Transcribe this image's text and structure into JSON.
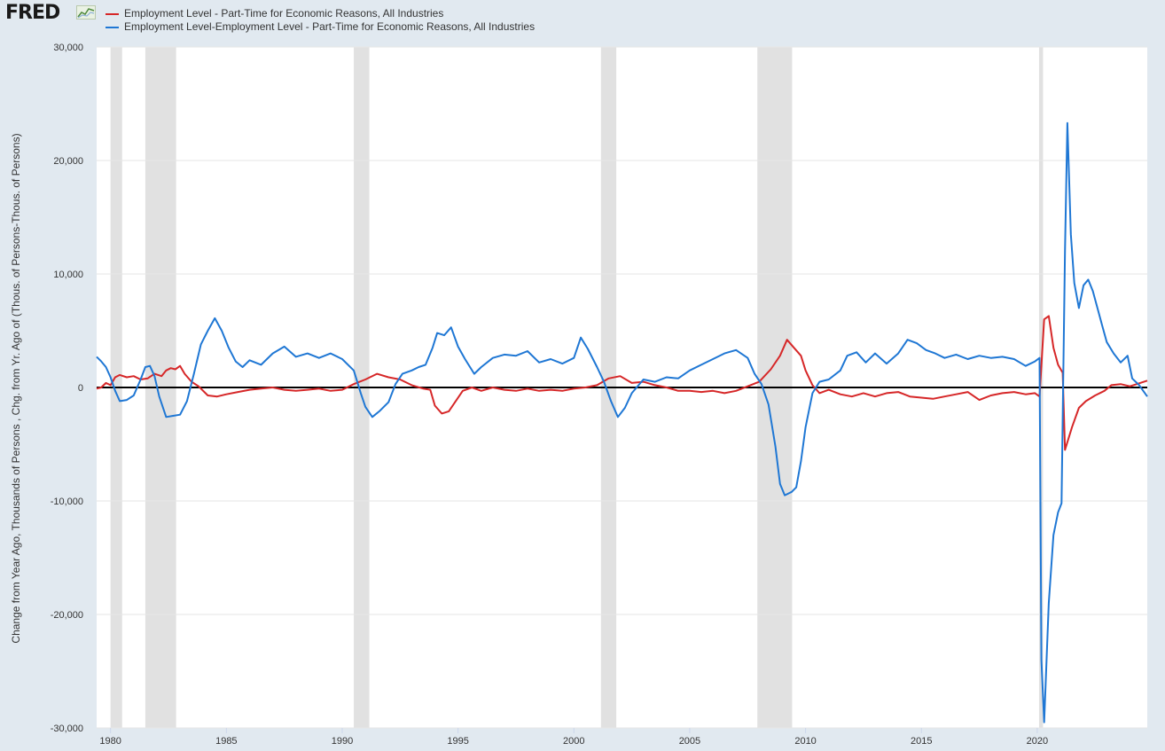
{
  "brand": {
    "name": "FRED"
  },
  "chart_data": {
    "type": "line",
    "title": "",
    "xlabel": "",
    "ylabel": "Change from Year Ago, Thousands of Persons , Chg. from Yr. Ago of (Thous. of Persons-Thous. of Persons)",
    "xlim": [
      1979.4,
      2024.75
    ],
    "ylim": [
      -30000,
      30000
    ],
    "yticks": [
      30000,
      20000,
      10000,
      0,
      -10000,
      -20000,
      -30000
    ],
    "ytick_labels": [
      "30,000",
      "20,000",
      "10,000",
      "0",
      "-10,000",
      "-20,000",
      "-30,000"
    ],
    "xticks": [
      1980,
      1985,
      1990,
      1995,
      2000,
      2005,
      2010,
      2015,
      2020
    ],
    "xtick_labels": [
      "1980",
      "1985",
      "1990",
      "1995",
      "2000",
      "2005",
      "2010",
      "2015",
      "2020"
    ],
    "grid": "horizontal",
    "zero_line": true,
    "recessions": [
      [
        1980.0,
        1980.5
      ],
      [
        1981.5,
        1982.83
      ],
      [
        1990.5,
        1991.17
      ],
      [
        2001.17,
        2001.83
      ],
      [
        2007.92,
        2009.42
      ],
      [
        2020.08,
        2020.25
      ]
    ],
    "series": [
      {
        "name": "Employment Level - Part-Time for Economic Reasons, All Industries",
        "color": "#d62728",
        "points": [
          [
            1979.4,
            -100
          ],
          [
            1979.6,
            0
          ],
          [
            1979.8,
            400
          ],
          [
            1980.0,
            200
          ],
          [
            1980.2,
            900
          ],
          [
            1980.4,
            1100
          ],
          [
            1980.7,
            900
          ],
          [
            1981.0,
            1000
          ],
          [
            1981.3,
            700
          ],
          [
            1981.6,
            800
          ],
          [
            1981.9,
            1200
          ],
          [
            1982.2,
            1000
          ],
          [
            1982.4,
            1500
          ],
          [
            1982.6,
            1700
          ],
          [
            1982.8,
            1600
          ],
          [
            1983.0,
            1900
          ],
          [
            1983.2,
            1200
          ],
          [
            1983.5,
            500
          ],
          [
            1983.8,
            100
          ],
          [
            1984.2,
            -700
          ],
          [
            1984.6,
            -800
          ],
          [
            1985.0,
            -600
          ],
          [
            1985.5,
            -400
          ],
          [
            1986.0,
            -200
          ],
          [
            1986.5,
            -100
          ],
          [
            1987.0,
            0
          ],
          [
            1987.5,
            -200
          ],
          [
            1988.0,
            -300
          ],
          [
            1988.5,
            -200
          ],
          [
            1989.0,
            -100
          ],
          [
            1989.5,
            -300
          ],
          [
            1990.0,
            -200
          ],
          [
            1990.5,
            300
          ],
          [
            1991.0,
            700
          ],
          [
            1991.5,
            1200
          ],
          [
            1992.0,
            900
          ],
          [
            1992.5,
            700
          ],
          [
            1993.0,
            200
          ],
          [
            1993.5,
            -100
          ],
          [
            1993.8,
            -200
          ],
          [
            1994.0,
            -1600
          ],
          [
            1994.3,
            -2300
          ],
          [
            1994.6,
            -2100
          ],
          [
            1994.9,
            -1200
          ],
          [
            1995.2,
            -300
          ],
          [
            1995.6,
            0
          ],
          [
            1996.0,
            -300
          ],
          [
            1996.5,
            0
          ],
          [
            1997.0,
            -200
          ],
          [
            1997.5,
            -300
          ],
          [
            1998.0,
            -100
          ],
          [
            1998.5,
            -300
          ],
          [
            1999.0,
            -200
          ],
          [
            1999.5,
            -300
          ],
          [
            2000.0,
            -100
          ],
          [
            2000.5,
            0
          ],
          [
            2001.0,
            200
          ],
          [
            2001.5,
            800
          ],
          [
            2002.0,
            1000
          ],
          [
            2002.5,
            400
          ],
          [
            2003.0,
            500
          ],
          [
            2003.5,
            200
          ],
          [
            2004.0,
            0
          ],
          [
            2004.5,
            -300
          ],
          [
            2005.0,
            -300
          ],
          [
            2005.5,
            -400
          ],
          [
            2006.0,
            -300
          ],
          [
            2006.5,
            -500
          ],
          [
            2007.0,
            -300
          ],
          [
            2007.5,
            100
          ],
          [
            2008.0,
            500
          ],
          [
            2008.5,
            1600
          ],
          [
            2008.9,
            2800
          ],
          [
            2009.2,
            4200
          ],
          [
            2009.5,
            3500
          ],
          [
            2009.8,
            2800
          ],
          [
            2010.0,
            1500
          ],
          [
            2010.3,
            200
          ],
          [
            2010.6,
            -500
          ],
          [
            2011.0,
            -200
          ],
          [
            2011.5,
            -600
          ],
          [
            2012.0,
            -800
          ],
          [
            2012.5,
            -500
          ],
          [
            2013.0,
            -800
          ],
          [
            2013.5,
            -500
          ],
          [
            2014.0,
            -400
          ],
          [
            2014.5,
            -800
          ],
          [
            2015.0,
            -900
          ],
          [
            2015.5,
            -1000
          ],
          [
            2016.0,
            -800
          ],
          [
            2016.5,
            -600
          ],
          [
            2017.0,
            -400
          ],
          [
            2017.5,
            -1100
          ],
          [
            2018.0,
            -700
          ],
          [
            2018.5,
            -500
          ],
          [
            2019.0,
            -400
          ],
          [
            2019.5,
            -600
          ],
          [
            2019.9,
            -500
          ],
          [
            2020.1,
            -800
          ],
          [
            2020.3,
            6000
          ],
          [
            2020.5,
            6300
          ],
          [
            2020.7,
            3500
          ],
          [
            2020.9,
            2000
          ],
          [
            2021.1,
            1300
          ],
          [
            2021.2,
            -5500
          ],
          [
            2021.5,
            -3500
          ],
          [
            2021.8,
            -1800
          ],
          [
            2022.1,
            -1200
          ],
          [
            2022.5,
            -700
          ],
          [
            2022.9,
            -300
          ],
          [
            2023.2,
            200
          ],
          [
            2023.6,
            300
          ],
          [
            2024.0,
            100
          ],
          [
            2024.3,
            300
          ],
          [
            2024.75,
            600
          ]
        ]
      },
      {
        "name": "Employment Level-Employment Level - Part-Time for Economic Reasons, All Industries",
        "color": "#1f77d4",
        "points": [
          [
            1979.4,
            2700
          ],
          [
            1979.6,
            2300
          ],
          [
            1979.8,
            1800
          ],
          [
            1980.0,
            900
          ],
          [
            1980.2,
            -300
          ],
          [
            1980.4,
            -1200
          ],
          [
            1980.7,
            -1100
          ],
          [
            1981.0,
            -700
          ],
          [
            1981.3,
            700
          ],
          [
            1981.5,
            1800
          ],
          [
            1981.7,
            1900
          ],
          [
            1981.9,
            1000
          ],
          [
            1982.1,
            -800
          ],
          [
            1982.4,
            -2600
          ],
          [
            1982.7,
            -2500
          ],
          [
            1983.0,
            -2400
          ],
          [
            1983.3,
            -1200
          ],
          [
            1983.6,
            1200
          ],
          [
            1983.9,
            3800
          ],
          [
            1984.2,
            5000
          ],
          [
            1984.5,
            6100
          ],
          [
            1984.8,
            5000
          ],
          [
            1985.1,
            3500
          ],
          [
            1985.4,
            2300
          ],
          [
            1985.7,
            1800
          ],
          [
            1986.0,
            2400
          ],
          [
            1986.5,
            2000
          ],
          [
            1987.0,
            3000
          ],
          [
            1987.5,
            3600
          ],
          [
            1988.0,
            2700
          ],
          [
            1988.5,
            3000
          ],
          [
            1989.0,
            2600
          ],
          [
            1989.5,
            3000
          ],
          [
            1990.0,
            2500
          ],
          [
            1990.5,
            1500
          ],
          [
            1990.8,
            -500
          ],
          [
            1991.0,
            -1700
          ],
          [
            1991.3,
            -2600
          ],
          [
            1991.6,
            -2100
          ],
          [
            1992.0,
            -1300
          ],
          [
            1992.3,
            300
          ],
          [
            1992.6,
            1200
          ],
          [
            1993.0,
            1500
          ],
          [
            1993.3,
            1800
          ],
          [
            1993.6,
            2000
          ],
          [
            1993.9,
            3500
          ],
          [
            1994.1,
            4800
          ],
          [
            1994.4,
            4600
          ],
          [
            1994.7,
            5300
          ],
          [
            1995.0,
            3600
          ],
          [
            1995.3,
            2500
          ],
          [
            1995.7,
            1200
          ],
          [
            1996.0,
            1800
          ],
          [
            1996.5,
            2600
          ],
          [
            1997.0,
            2900
          ],
          [
            1997.5,
            2800
          ],
          [
            1998.0,
            3200
          ],
          [
            1998.5,
            2200
          ],
          [
            1999.0,
            2500
          ],
          [
            1999.5,
            2100
          ],
          [
            2000.0,
            2600
          ],
          [
            2000.3,
            4400
          ],
          [
            2000.6,
            3400
          ],
          [
            2001.0,
            1800
          ],
          [
            2001.3,
            500
          ],
          [
            2001.6,
            -1200
          ],
          [
            2001.9,
            -2600
          ],
          [
            2002.2,
            -1800
          ],
          [
            2002.5,
            -500
          ],
          [
            2003.0,
            700
          ],
          [
            2003.5,
            500
          ],
          [
            2004.0,
            900
          ],
          [
            2004.5,
            800
          ],
          [
            2005.0,
            1500
          ],
          [
            2005.5,
            2000
          ],
          [
            2006.0,
            2500
          ],
          [
            2006.5,
            3000
          ],
          [
            2007.0,
            3300
          ],
          [
            2007.5,
            2600
          ],
          [
            2007.8,
            1200
          ],
          [
            2008.1,
            300
          ],
          [
            2008.4,
            -1500
          ],
          [
            2008.7,
            -5200
          ],
          [
            2008.9,
            -8500
          ],
          [
            2009.1,
            -9500
          ],
          [
            2009.4,
            -9200
          ],
          [
            2009.6,
            -8800
          ],
          [
            2009.8,
            -6500
          ],
          [
            2010.0,
            -3500
          ],
          [
            2010.3,
            -500
          ],
          [
            2010.6,
            500
          ],
          [
            2011.0,
            700
          ],
          [
            2011.5,
            1500
          ],
          [
            2011.8,
            2800
          ],
          [
            2012.2,
            3100
          ],
          [
            2012.6,
            2200
          ],
          [
            2013.0,
            3000
          ],
          [
            2013.5,
            2100
          ],
          [
            2014.0,
            3000
          ],
          [
            2014.4,
            4200
          ],
          [
            2014.8,
            3900
          ],
          [
            2015.2,
            3300
          ],
          [
            2015.6,
            3000
          ],
          [
            2016.0,
            2600
          ],
          [
            2016.5,
            2900
          ],
          [
            2017.0,
            2500
          ],
          [
            2017.5,
            2800
          ],
          [
            2018.0,
            2600
          ],
          [
            2018.5,
            2700
          ],
          [
            2019.0,
            2500
          ],
          [
            2019.5,
            1900
          ],
          [
            2019.9,
            2300
          ],
          [
            2020.1,
            2600
          ],
          [
            2020.18,
            -24000
          ],
          [
            2020.3,
            -29500
          ],
          [
            2020.5,
            -19000
          ],
          [
            2020.7,
            -13000
          ],
          [
            2020.9,
            -11000
          ],
          [
            2021.05,
            -10200
          ],
          [
            2021.2,
            12000
          ],
          [
            2021.3,
            23300
          ],
          [
            2021.45,
            13500
          ],
          [
            2021.6,
            9200
          ],
          [
            2021.8,
            7000
          ],
          [
            2022.0,
            9000
          ],
          [
            2022.2,
            9500
          ],
          [
            2022.4,
            8500
          ],
          [
            2022.6,
            7000
          ],
          [
            2022.8,
            5500
          ],
          [
            2023.0,
            4000
          ],
          [
            2023.3,
            3000
          ],
          [
            2023.6,
            2200
          ],
          [
            2023.9,
            2800
          ],
          [
            2024.1,
            800
          ],
          [
            2024.4,
            200
          ],
          [
            2024.75,
            -800
          ]
        ]
      }
    ]
  }
}
